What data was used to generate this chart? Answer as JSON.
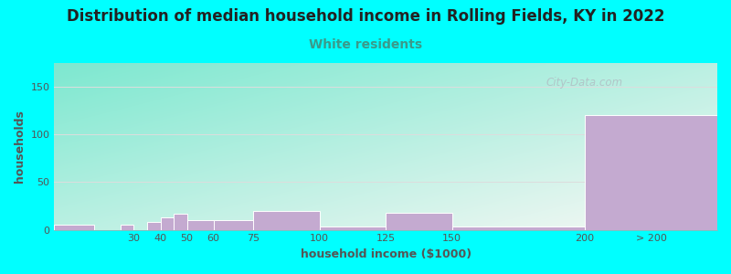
{
  "title": "Distribution of median household income in Rolling Fields, KY in 2022",
  "subtitle": "White residents",
  "xlabel": "household income ($1000)",
  "ylabel": "households",
  "background_color": "#00FFFF",
  "bar_color": "#c4aad0",
  "bar_edge_color": "#ffffff",
  "title_fontsize": 12,
  "subtitle_fontsize": 10,
  "subtitle_color": "#3a9a8a",
  "axis_label_fontsize": 9,
  "tick_fontsize": 8,
  "tick_labels": [
    "30",
    "40",
    "50",
    "60",
    "75",
    "100",
    "125",
    "150",
    "200",
    "> 200"
  ],
  "tick_positions": [
    30,
    40,
    50,
    60,
    75,
    100,
    125,
    150,
    200,
    225
  ],
  "boundaries": [
    0,
    15,
    20,
    25,
    30,
    35,
    40,
    45,
    50,
    60,
    75,
    100,
    125,
    150,
    200,
    250
  ],
  "values": [
    5,
    0,
    0,
    5,
    0,
    8,
    13,
    17,
    10,
    10,
    20,
    3,
    18,
    3,
    120
  ],
  "xlim": [
    0,
    250
  ],
  "ylim": [
    0,
    175
  ],
  "yticks": [
    0,
    50,
    100,
    150
  ],
  "watermark": "City-Data.com",
  "gradient_colors": [
    "#7de8d8",
    "#e8f5e5",
    "#f5f5f0"
  ],
  "grid_color": "#dddddd",
  "tick_color": "#555555",
  "title_color": "#222222"
}
